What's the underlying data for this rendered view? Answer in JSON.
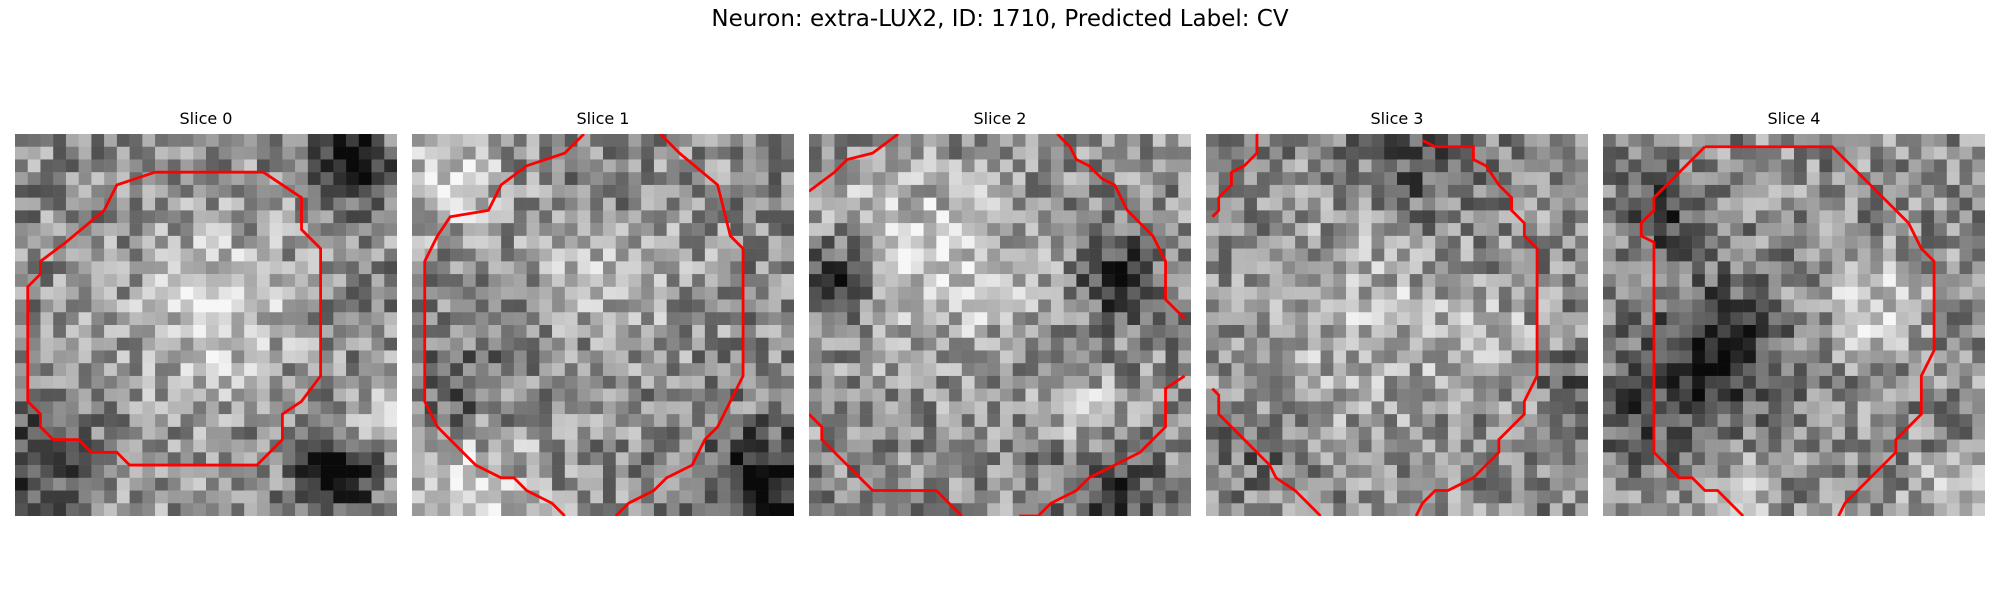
{
  "figure": {
    "title": "Neuron: extra-LUX2, ID: 1710, Predicted Label: CV"
  },
  "panels": [
    {
      "label": "Slice 0"
    },
    {
      "label": "Slice 1"
    },
    {
      "label": "Slice 2"
    },
    {
      "label": "Slice 3"
    },
    {
      "label": "Slice 4"
    }
  ],
  "colors": {
    "contour": "#ff0000",
    "background": "#ffffff"
  }
}
